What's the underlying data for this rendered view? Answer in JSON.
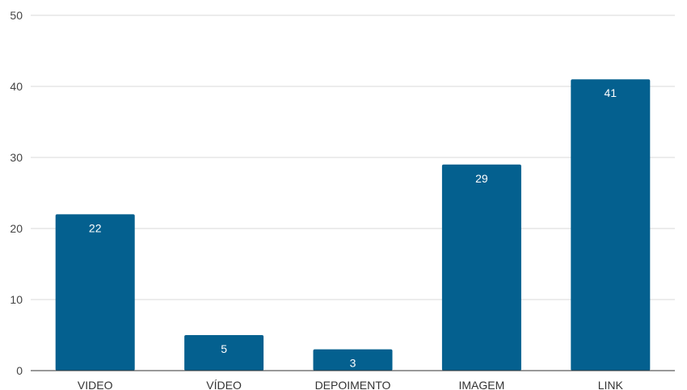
{
  "chart_data": {
    "type": "bar",
    "title": "",
    "xlabel": "",
    "ylabel": "",
    "categories": [
      "VIDEO",
      "VÍDEO",
      "DEPOIMENTO",
      "IMAGEM",
      "LINK"
    ],
    "values": [
      22,
      5,
      3,
      29,
      41
    ],
    "ylim": [
      0,
      50
    ],
    "yticks": [
      0,
      10,
      20,
      30,
      40,
      50
    ],
    "grid": true,
    "legend": "none",
    "data_labels": true,
    "colors": {
      "bar": "#04608F",
      "grid": "#d9d9d9",
      "axis": "#333333",
      "data_label": "#ffffff"
    }
  }
}
